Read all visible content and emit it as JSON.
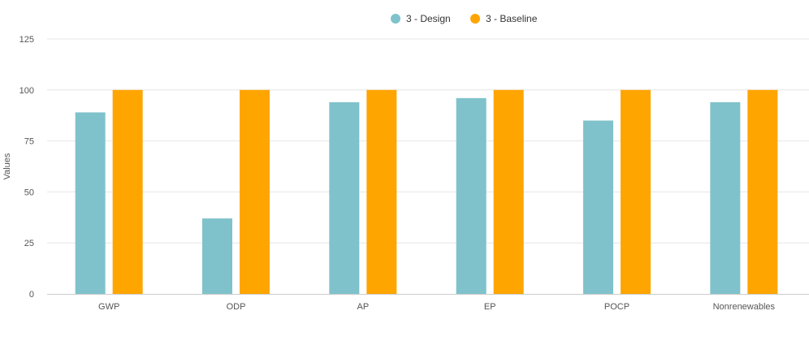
{
  "colors": {
    "design": "#7fc2cb",
    "baseline": "#ffa500"
  },
  "chart_data": {
    "type": "bar",
    "categories": [
      "GWP",
      "ODP",
      "AP",
      "EP",
      "POCP",
      "Nonrenewables"
    ],
    "series": [
      {
        "name": "3 - Design",
        "values": [
          89,
          37,
          94,
          96,
          85,
          94
        ]
      },
      {
        "name": "3 - Baseline",
        "values": [
          100,
          100,
          100,
          100,
          100,
          100
        ]
      }
    ],
    "ylabel": "Values",
    "ylim": [
      0,
      125
    ],
    "yticks": [
      0,
      25,
      50,
      75,
      100,
      125
    ],
    "grid": true,
    "legend_position": "top-center"
  }
}
